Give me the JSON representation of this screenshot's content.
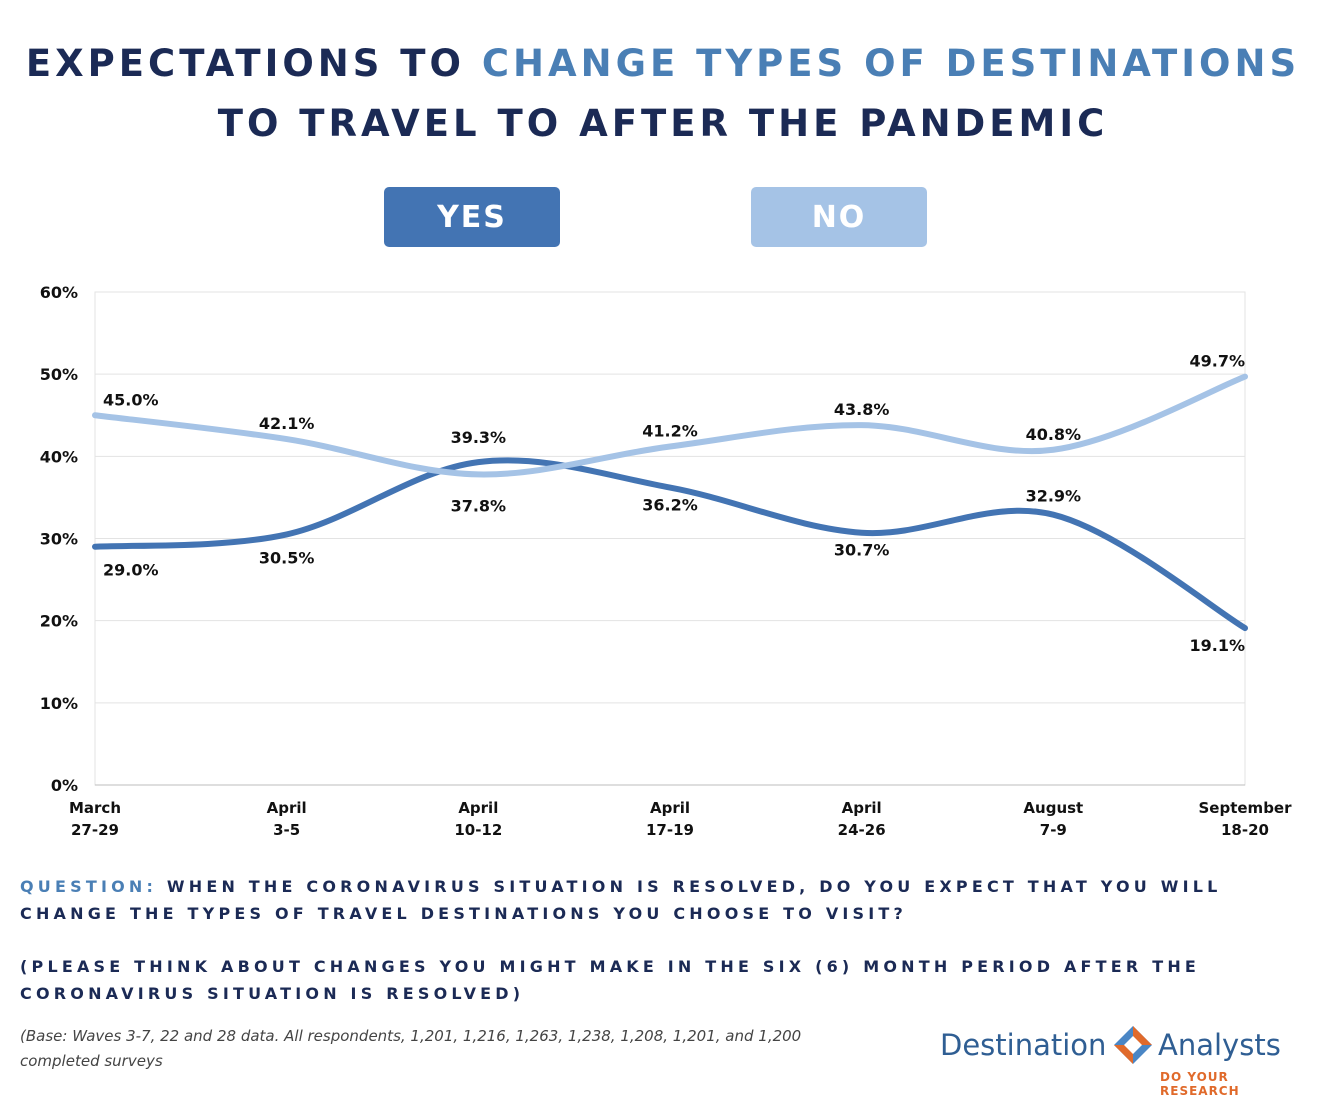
{
  "title": {
    "line1_part1": "EXPECTATIONS TO ",
    "line1_part2": "CHANGE TYPES OF DESTINATIONS",
    "line2": "TO TRAVEL TO AFTER THE PANDEMIC"
  },
  "colors": {
    "yes": "#4374b3",
    "no": "#a5c3e6",
    "title_dark": "#1b2a55",
    "title_accent": "#4a7fb5",
    "logo_orange": "#e06a2b"
  },
  "chart_data": {
    "type": "line",
    "categories": [
      [
        "March",
        "27-29"
      ],
      [
        "April",
        "3-5"
      ],
      [
        "April",
        "10-12"
      ],
      [
        "April",
        "17-19"
      ],
      [
        "April",
        "24-26"
      ],
      [
        "August",
        "7-9"
      ],
      [
        "September",
        "18-20"
      ]
    ],
    "series": [
      {
        "name": "YES",
        "values": [
          29.0,
          30.5,
          39.3,
          36.2,
          30.7,
          32.9,
          19.1
        ],
        "labels": [
          "29.0%",
          "30.5%",
          "39.3%",
          "36.2%",
          "30.7%",
          "32.9%",
          "19.1%"
        ],
        "color": "#4374b3"
      },
      {
        "name": "NO",
        "values": [
          45.0,
          42.1,
          37.8,
          41.2,
          43.8,
          40.8,
          49.7
        ],
        "labels": [
          "45.0%",
          "42.1%",
          "37.8%",
          "41.2%",
          "43.8%",
          "40.8%",
          "49.7%"
        ],
        "color": "#a5c3e6"
      }
    ],
    "yticks": [
      "0%",
      "10%",
      "20%",
      "30%",
      "40%",
      "50%",
      "60%"
    ],
    "ylim": [
      0,
      60
    ],
    "grid": true,
    "legend": "top-center"
  },
  "question": {
    "label": "QUESTION:",
    "text": " WHEN THE CORONAVIRUS SITUATION IS RESOLVED, DO YOU EXPECT THAT YOU WILL CHANGE THE TYPES OF TRAVEL DESTINATIONS YOU CHOOSE TO VISIT?",
    "note": "(PLEASE THINK ABOUT CHANGES YOU MIGHT MAKE IN THE SIX (6) MONTH PERIOD AFTER THE CORONAVIRUS SITUATION IS RESOLVED)"
  },
  "base_note": "(Base: Waves 3-7, 22 and  28 data. All respondents, 1,201, 1,216, 1,263, 1,238, 1,208, 1,201, and 1,200 completed surveys",
  "logo": {
    "left": "Destination",
    "right": "Analysts",
    "tagline": "DO YOUR RESEARCH"
  }
}
